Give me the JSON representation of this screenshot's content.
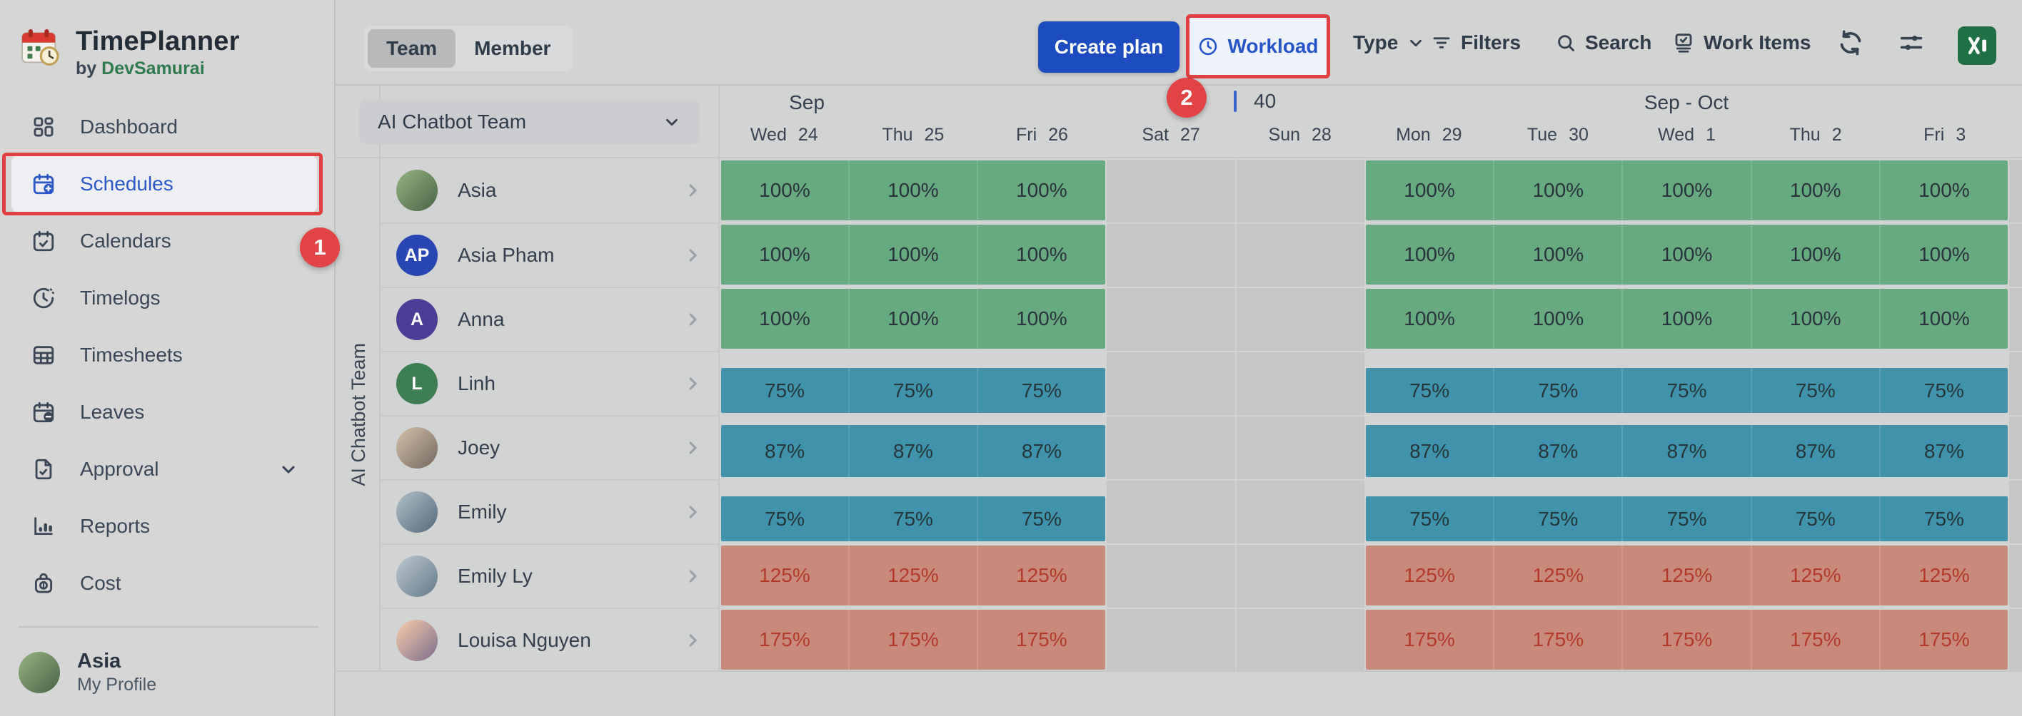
{
  "app": {
    "title": "TimePlanner",
    "byline_prefix": "by",
    "byline_brand": "DevSamurai"
  },
  "colors": {
    "accent_blue": "#2456c7",
    "button_blue": "#1d4cc0",
    "annotation_red": "#e04040",
    "bar_green": "#67aa80",
    "bar_teal": "#4092ad",
    "bar_salmon": "#c98b79",
    "bar_text_dark": "#27343b",
    "bar_text_red": "#b23a2b",
    "excel_green": "#1f7044"
  },
  "annotations": {
    "step_1": "1",
    "step_2": "2"
  },
  "sidebar": {
    "items": [
      {
        "id": "dashboard",
        "label": "Dashboard",
        "icon": "dashboard-icon"
      },
      {
        "id": "schedules",
        "label": "Schedules",
        "icon": "calendar-plus-icon",
        "active": true,
        "annotated": true
      },
      {
        "id": "calendars",
        "label": "Calendars",
        "icon": "calendar-check-icon"
      },
      {
        "id": "timelogs",
        "label": "Timelogs",
        "icon": "clock-dashed-icon"
      },
      {
        "id": "timesheets",
        "label": "Timesheets",
        "icon": "table-icon"
      },
      {
        "id": "leaves",
        "label": "Leaves",
        "icon": "calendar-minus-icon"
      },
      {
        "id": "approval",
        "label": "Approval",
        "icon": "file-check-icon",
        "has_chevron": true
      },
      {
        "id": "reports",
        "label": "Reports",
        "icon": "bar-chart-icon"
      },
      {
        "id": "cost",
        "label": "Cost",
        "icon": "money-bag-icon"
      }
    ],
    "profile": {
      "name": "Asia",
      "link_label": "My Profile"
    }
  },
  "toolbar": {
    "view_tabs": [
      {
        "label": "Team",
        "selected": true
      },
      {
        "label": "Member",
        "selected": false
      }
    ],
    "create_plan_label": "Create plan",
    "workload_label": "Workload",
    "type_label": "Type",
    "filters_label": "Filters",
    "search_label": "Search",
    "work_items_label": "Work Items"
  },
  "schedule": {
    "team_selector_label": "AI Chatbot Team",
    "group_label": "AI Chatbot Team",
    "month_labels": [
      {
        "label": "Sep"
      },
      {
        "label": "Sep - Oct"
      }
    ],
    "week_capacity": "40",
    "days": [
      {
        "dow": "Wed",
        "num": "24"
      },
      {
        "dow": "Thu",
        "num": "25"
      },
      {
        "dow": "Fri",
        "num": "26"
      },
      {
        "dow": "Sat",
        "num": "27",
        "weekend": true
      },
      {
        "dow": "Sun",
        "num": "28",
        "weekend": true
      },
      {
        "dow": "Mon",
        "num": "29"
      },
      {
        "dow": "Tue",
        "num": "30"
      },
      {
        "dow": "Wed",
        "num": "1"
      },
      {
        "dow": "Thu",
        "num": "2"
      },
      {
        "dow": "Fri",
        "num": "3"
      }
    ],
    "members": [
      {
        "name": "Asia",
        "avatar": {
          "type": "photo",
          "photo_id": "asia"
        },
        "workload": "100%",
        "pct": 100,
        "level": "full"
      },
      {
        "name": "Asia Pham",
        "avatar": {
          "type": "initials",
          "initials": "AP",
          "color": "#2847b4"
        },
        "workload": "100%",
        "pct": 100,
        "level": "full"
      },
      {
        "name": "Anna",
        "avatar": {
          "type": "initials",
          "initials": "A",
          "color": "#4b3c98"
        },
        "workload": "100%",
        "pct": 100,
        "level": "full"
      },
      {
        "name": "Linh",
        "avatar": {
          "type": "initials",
          "initials": "L",
          "color": "#3d7e53"
        },
        "workload": "75%",
        "pct": 75,
        "level": "under"
      },
      {
        "name": "Joey",
        "avatar": {
          "type": "photo",
          "photo_id": "joey"
        },
        "workload": "87%",
        "pct": 87,
        "level": "under"
      },
      {
        "name": "Emily",
        "avatar": {
          "type": "photo",
          "photo_id": "emily"
        },
        "workload": "75%",
        "pct": 75,
        "level": "under"
      },
      {
        "name": "Emily Ly",
        "avatar": {
          "type": "photo",
          "photo_id": "emily-ly"
        },
        "workload": "125%",
        "pct": 125,
        "level": "over"
      },
      {
        "name": "Louisa Nguyen",
        "avatar": {
          "type": "photo",
          "photo_id": "louisa"
        },
        "workload": "175%",
        "pct": 175,
        "level": "over"
      }
    ]
  }
}
